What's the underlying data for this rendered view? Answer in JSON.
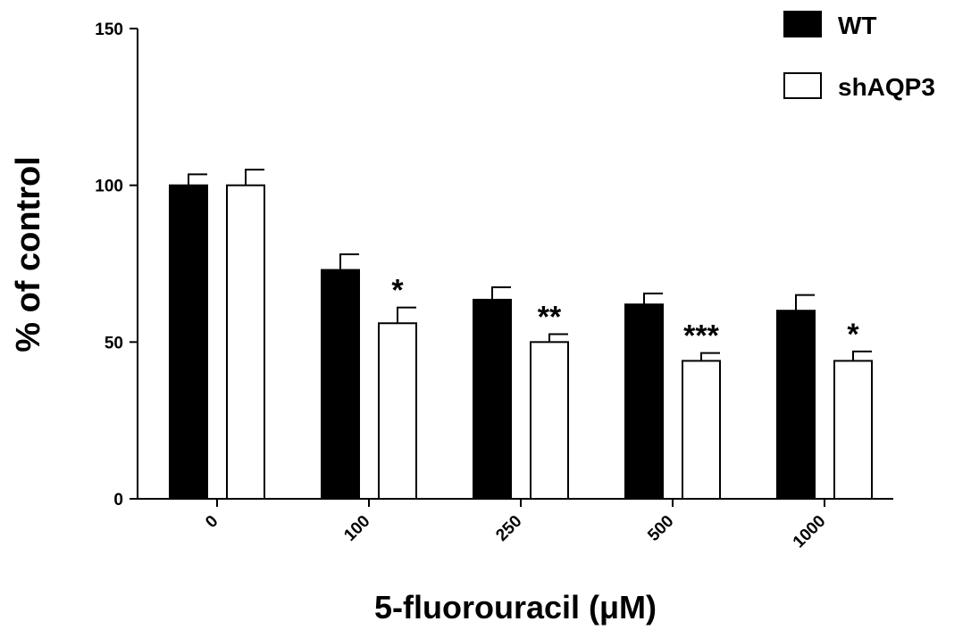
{
  "chart_data": {
    "type": "bar",
    "categories": [
      "0",
      "100",
      "250",
      "500",
      "1000"
    ],
    "series": [
      {
        "name": "WT",
        "values": [
          100,
          73,
          63.5,
          62,
          60
        ],
        "errors": [
          3.5,
          5,
          4,
          3.5,
          5
        ],
        "color": "#000000"
      },
      {
        "name": "shAQP3",
        "values": [
          100,
          56,
          50,
          44,
          44
        ],
        "errors": [
          5,
          5,
          2.5,
          2.5,
          3
        ],
        "color": "#ffffff"
      }
    ],
    "significance": [
      "",
      "*",
      "**",
      "***",
      "*"
    ],
    "xlabel": "5-fluorouracil (μM)",
    "ylabel": "% of control",
    "ylim": [
      0,
      150
    ],
    "yticks": [
      0,
      50,
      100,
      150
    ],
    "grid": false,
    "legend_position": "top-right"
  }
}
